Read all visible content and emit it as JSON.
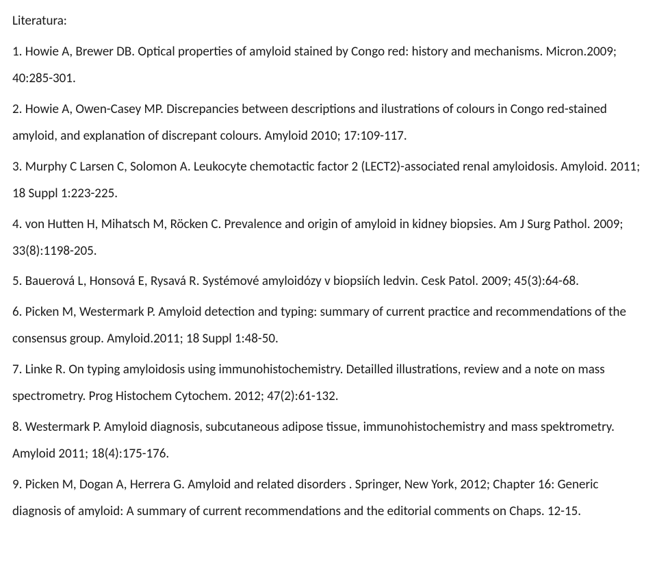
{
  "heading": "Literatura:",
  "references": [
    "1. Howie A, Brewer DB. Optical properties of amyloid stained by Congo red: history and mechanisms. Micron.2009; 40:285-301.",
    "2. Howie A, Owen-Casey MP. Discrepancies between descriptions and ilustrations of colours in Congo red-stained amyloid, and explanation of discrepant colours. Amyloid 2010; 17:109-117.",
    "3. Murphy C Larsen C, Solomon A. Leukocyte chemotactic factor 2 (LECT2)-associated renal amyloidosis. Amyloid. 2011; 18 Suppl 1:223-225.",
    "4. von Hutten H, Mihatsch M, Röcken C. Prevalence and origin of amyloid in kidney biopsies. Am J Surg Pathol. 2009; 33(8):1198-205.",
    "5. Bauerová L, Honsová E, Rysavá R. Systémové amyloidózy v biopsiích ledvin. Cesk Patol. 2009; 45(3):64-68.",
    "6. Picken M, Westermark P. Amyloid detection and typing: summary of current practice and recommendations of the consensus group. Amyloid.2011; 18 Suppl 1:48-50.",
    "7. Linke R. On typing amyloidosis using immunohistochemistry. Detailled illustrations, review and a note on mass spectrometry. Prog Histochem Cytochem. 2012; 47(2):61-132.",
    "8. Westermark P. Amyloid diagnosis, subcutaneous adipose tissue, immunohistochemistry and mass spektrometry. Amyloid 2011; 18(4):175-176.",
    "9. Picken M, Dogan A, Herrera G. Amyloid and related disorders . Springer, New York, 2012; Chapter 16: Generic diagnosis of amyloid: A summary of current recommendations and the editorial comments on Chaps. 12-15."
  ]
}
